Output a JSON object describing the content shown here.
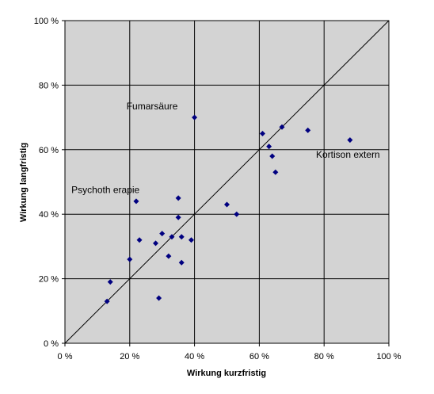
{
  "chart_data": {
    "type": "scatter",
    "xlabel": "Wirkung kurzfristig",
    "ylabel": "Wirkung langfristig",
    "xlim": [
      0,
      100
    ],
    "ylim": [
      0,
      100
    ],
    "x_ticks": [
      0,
      20,
      40,
      60,
      80,
      100
    ],
    "y_ticks": [
      0,
      20,
      40,
      60,
      80,
      100
    ],
    "x_tick_labels": [
      "0 %",
      "20 %",
      "40 %",
      "60 %",
      "80 %",
      "100 %"
    ],
    "y_tick_labels": [
      "0 %",
      "20 %",
      "40 %",
      "60 %",
      "80 %",
      "100 %"
    ],
    "grid": true,
    "background_color": "#d3d3d3",
    "marker_color": "#000080",
    "reference_line": {
      "from": [
        0,
        0
      ],
      "to": [
        100,
        100
      ],
      "color": "#000000"
    },
    "points": [
      {
        "x": 13,
        "y": 13
      },
      {
        "x": 14,
        "y": 19
      },
      {
        "x": 20,
        "y": 26
      },
      {
        "x": 22,
        "y": 44
      },
      {
        "x": 23,
        "y": 32
      },
      {
        "x": 28,
        "y": 31
      },
      {
        "x": 29,
        "y": 14
      },
      {
        "x": 30,
        "y": 34
      },
      {
        "x": 32,
        "y": 27
      },
      {
        "x": 33,
        "y": 33
      },
      {
        "x": 35,
        "y": 45
      },
      {
        "x": 35,
        "y": 39
      },
      {
        "x": 36,
        "y": 33
      },
      {
        "x": 36,
        "y": 25
      },
      {
        "x": 39,
        "y": 32
      },
      {
        "x": 40,
        "y": 70
      },
      {
        "x": 50,
        "y": 43
      },
      {
        "x": 53,
        "y": 40
      },
      {
        "x": 61,
        "y": 65
      },
      {
        "x": 63,
        "y": 61
      },
      {
        "x": 64,
        "y": 58
      },
      {
        "x": 65,
        "y": 53
      },
      {
        "x": 67,
        "y": 67
      },
      {
        "x": 75,
        "y": 66
      },
      {
        "x": 88,
        "y": 63
      }
    ],
    "annotations": [
      {
        "text": "Fumarsäure",
        "x": 19,
        "y": 73.5
      },
      {
        "text": "Psychoth erapie",
        "x": 2,
        "y": 47.5
      },
      {
        "text": "Kortison extern",
        "x": 77.5,
        "y": 58.5
      }
    ]
  }
}
